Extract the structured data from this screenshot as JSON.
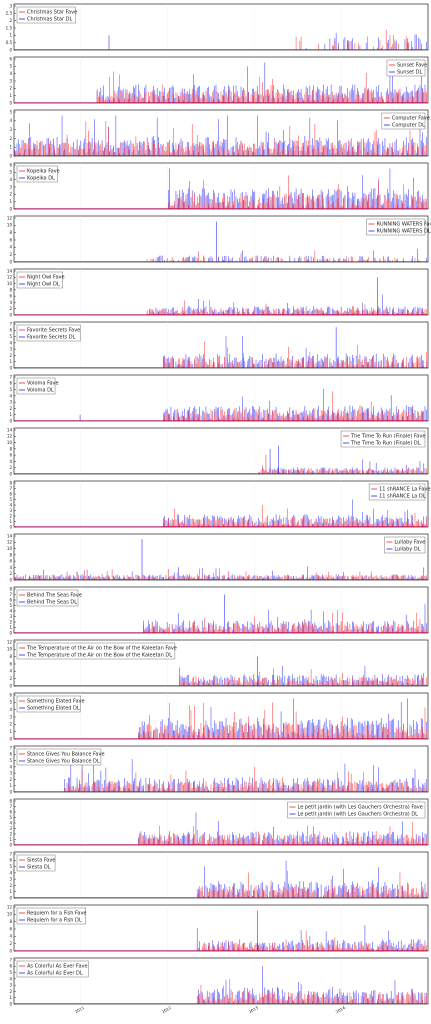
{
  "colors": {
    "fave": "#ff0000",
    "dl": "#0000ff",
    "grid": "#d8d8d8",
    "frame": "#000000"
  },
  "x_axis": {
    "ticks": [
      "2011",
      "2012",
      "2013",
      "2014"
    ]
  },
  "chart_data": [
    {
      "type": "line",
      "fave_label": "Christmas Star Fave",
      "dl_label": "Christmas Star DL",
      "yticks": [
        "0",
        "0.5",
        "1",
        "1.5",
        "2",
        "2.5",
        "3"
      ],
      "ymax": 3,
      "legend": "top-left",
      "dl_start": 0.68,
      "fave_start": 0.68,
      "density": 0.25,
      "dl_mean": 0.6,
      "fave_mean": 0.6,
      "extra_dl": [
        [
          0.23,
          1
        ]
      ],
      "extra_fave": []
    },
    {
      "type": "line",
      "fave_label": "Sunset Fave",
      "dl_label": "Sunset DL",
      "yticks": [
        "0",
        "1",
        "2",
        "3",
        "4",
        "5",
        "6"
      ],
      "ymax": 6,
      "legend": "top-right",
      "dl_start": 0.2,
      "fave_start": 0.2,
      "density": 0.9,
      "dl_mean": 1.4,
      "fave_mean": 1.1,
      "extra_dl": [],
      "extra_fave": []
    },
    {
      "type": "line",
      "fave_label": "Computer Fave",
      "dl_label": "Computer DL",
      "yticks": [
        "0",
        "1",
        "2",
        "3",
        "4",
        "5"
      ],
      "ymax": 5,
      "legend": "top-right",
      "dl_start": 0.0,
      "fave_start": 0.0,
      "density": 0.9,
      "dl_mean": 1.2,
      "fave_mean": 1.0,
      "extra_dl": [],
      "extra_fave": []
    },
    {
      "type": "line",
      "fave_label": "Kopeika Fave",
      "dl_label": "Kopeika DL",
      "yticks": [
        "0",
        "1",
        "2",
        "3",
        "4",
        "5",
        "6"
      ],
      "ymax": 6,
      "legend": "top-left",
      "dl_start": 0.37,
      "fave_start": 0.37,
      "density": 0.9,
      "dl_mean": 1.6,
      "fave_mean": 1.2,
      "extra_dl": [],
      "extra_fave": []
    },
    {
      "type": "line",
      "fave_label": "RUNNING WATERS Fave",
      "dl_label": "RUNNING WATERS DL",
      "yticks": [
        "0",
        "2",
        "4",
        "6",
        "8",
        "10",
        "12"
      ],
      "ymax": 12,
      "legend": "top-right",
      "dl_start": 0.32,
      "fave_start": 0.32,
      "density": 0.4,
      "dl_mean": 1.0,
      "fave_mean": 0.8,
      "extra_dl": [
        [
          0.49,
          11
        ]
      ],
      "extra_fave": []
    },
    {
      "type": "line",
      "fave_label": "Night Owl Fave",
      "dl_label": "Night Owl DL",
      "yticks": [
        "0",
        "2",
        "4",
        "6",
        "8",
        "10",
        "12",
        "14"
      ],
      "ymax": 14,
      "legend": "top-left",
      "dl_start": 0.32,
      "fave_start": 0.32,
      "density": 0.9,
      "dl_mean": 1.6,
      "fave_mean": 1.2,
      "extra_dl": [
        [
          0.88,
          12
        ]
      ],
      "extra_fave": []
    },
    {
      "type": "line",
      "fave_label": "Favorite Secrets Fave",
      "dl_label": "Favorite Secrets DL",
      "yticks": [
        "0",
        "1",
        "2",
        "3",
        "4",
        "5",
        "6",
        "7"
      ],
      "ymax": 7,
      "legend": "top-left",
      "dl_start": 0.36,
      "fave_start": 0.36,
      "density": 0.8,
      "dl_mean": 1.3,
      "fave_mean": 1.0,
      "extra_dl": [
        [
          0.78,
          6.5
        ]
      ],
      "extra_fave": []
    },
    {
      "type": "line",
      "fave_label": "Voloma Fave",
      "dl_label": "Voloma DL",
      "yticks": [
        "0",
        "1",
        "2",
        "3",
        "4",
        "5",
        "6",
        "7"
      ],
      "ymax": 7,
      "legend": "top-left",
      "dl_start": 0.36,
      "fave_start": 0.36,
      "density": 0.9,
      "dl_mean": 1.4,
      "fave_mean": 1.1,
      "extra_dl": [
        [
          0.16,
          1
        ]
      ],
      "extra_fave": []
    },
    {
      "type": "line",
      "fave_label": "The Time To Run (Finale) Fave",
      "dl_label": "The Time To Run (Finale) DL",
      "yticks": [
        "0",
        "2",
        "4",
        "6",
        "8",
        "10",
        "12",
        "14"
      ],
      "ymax": 14,
      "legend": "top-right",
      "dl_start": 0.59,
      "fave_start": 0.59,
      "density": 0.9,
      "dl_mean": 1.2,
      "fave_mean": 1.0,
      "extra_dl": [
        [
          0.62,
          8
        ],
        [
          0.64,
          9
        ]
      ],
      "extra_fave": [
        [
          0.61,
          6
        ]
      ]
    },
    {
      "type": "line",
      "fave_label": "11 shRANCE La Fave",
      "dl_label": "11 shRANCE La DL",
      "yticks": [
        "0",
        "1",
        "2",
        "3",
        "4",
        "5",
        "6",
        "7",
        "8"
      ],
      "ymax": 8,
      "legend": "top-right",
      "dl_start": 0.36,
      "fave_start": 0.36,
      "density": 0.9,
      "dl_mean": 1.3,
      "fave_mean": 1.0,
      "extra_dl": [],
      "extra_fave": []
    },
    {
      "type": "line",
      "fave_label": "Lullaby Fave",
      "dl_label": "Lullaby DL",
      "yticks": [
        "0",
        "2",
        "4",
        "6",
        "8",
        "10",
        "12",
        "14"
      ],
      "ymax": 14,
      "legend": "top-right",
      "dl_start": 0.0,
      "fave_start": 0.0,
      "density": 0.9,
      "dl_mean": 1.0,
      "fave_mean": 0.9,
      "extra_dl": [
        [
          0.31,
          13
        ]
      ],
      "extra_fave": []
    },
    {
      "type": "line",
      "fave_label": "Behind The Seas Fave",
      "dl_label": "Behind The Seas DL",
      "yticks": [
        "0",
        "1",
        "2",
        "3",
        "4",
        "5",
        "6",
        "7",
        "8"
      ],
      "ymax": 8,
      "legend": "top-left",
      "dl_start": 0.31,
      "fave_start": 0.31,
      "density": 0.85,
      "dl_mean": 1.3,
      "fave_mean": 1.0,
      "extra_dl": [
        [
          0.51,
          7
        ]
      ],
      "extra_fave": []
    },
    {
      "type": "line",
      "fave_label": "The Temperature of the Air on the Bow of the Kaleetan Fave",
      "dl_label": "The Temperature of the Air on the Bow of the Kaleetan DL",
      "yticks": [
        "0",
        "2",
        "4",
        "6",
        "8",
        "10",
        "12"
      ],
      "ymax": 12,
      "legend": "top-left",
      "dl_start": 0.4,
      "fave_start": 0.4,
      "density": 0.9,
      "dl_mean": 1.8,
      "fave_mean": 1.4,
      "extra_dl": [
        [
          0.59,
          8
        ]
      ],
      "extra_fave": []
    },
    {
      "type": "line",
      "fave_label": "Something Elated Fave",
      "dl_label": "Something Elated DL",
      "yticks": [
        "0",
        "1",
        "2",
        "3",
        "4",
        "5",
        "6"
      ],
      "ymax": 6,
      "legend": "top-left",
      "dl_start": 0.3,
      "fave_start": 0.3,
      "density": 0.95,
      "dl_mean": 1.6,
      "fave_mean": 1.2,
      "extra_dl": [],
      "extra_fave": []
    },
    {
      "type": "line",
      "fave_label": "Stance Gives You Balance Fave",
      "dl_label": "Stance Gives You Balance DL",
      "yticks": [
        "0",
        "1",
        "2",
        "3",
        "4",
        "5",
        "6",
        "7"
      ],
      "ymax": 7,
      "legend": "top-left",
      "dl_start": 0.12,
      "fave_start": 0.12,
      "density": 0.85,
      "dl_mean": 1.3,
      "fave_mean": 1.0,
      "extra_dl": [],
      "extra_fave": []
    },
    {
      "type": "line",
      "fave_label": "Le petit jardin (with Les Gauchers Orchestra) Fave",
      "dl_label": "Le petit jardin (with Les Gauchers Orchestra) DL",
      "yticks": [
        "0",
        "1",
        "2",
        "3",
        "4",
        "5",
        "6",
        "7",
        "8"
      ],
      "ymax": 8,
      "legend": "top-right",
      "dl_start": 0.3,
      "fave_start": 0.3,
      "density": 0.9,
      "dl_mean": 1.4,
      "fave_mean": 1.1,
      "extra_dl": [],
      "extra_fave": []
    },
    {
      "type": "line",
      "fave_label": "Siesta Fave",
      "dl_label": "Siesta DL",
      "yticks": [
        "0",
        "1",
        "2",
        "3",
        "4",
        "5",
        "6",
        "7"
      ],
      "ymax": 7,
      "legend": "top-left",
      "dl_start": 0.44,
      "fave_start": 0.44,
      "density": 0.9,
      "dl_mean": 1.5,
      "fave_mean": 1.1,
      "extra_dl": [],
      "extra_fave": []
    },
    {
      "type": "line",
      "fave_label": "Requiem for a Fish Fave",
      "dl_label": "Requiem for a Fish DL",
      "yticks": [
        "0",
        "2",
        "4",
        "6",
        "8",
        "10",
        "12"
      ],
      "ymax": 12,
      "legend": "top-left",
      "dl_start": 0.44,
      "fave_start": 0.44,
      "density": 0.85,
      "dl_mean": 1.8,
      "fave_mean": 1.3,
      "extra_dl": [
        [
          0.59,
          11
        ]
      ],
      "extra_fave": []
    },
    {
      "type": "line",
      "fave_label": "As Colorful As Ever Fave",
      "dl_label": "As Colorful As Ever DL",
      "yticks": [
        "0",
        "1",
        "2",
        "3",
        "4",
        "5",
        "6",
        "7"
      ],
      "ymax": 7,
      "legend": "top-left",
      "dl_start": 0.44,
      "fave_start": 0.44,
      "density": 0.9,
      "dl_mean": 1.5,
      "fave_mean": 1.1,
      "extra_dl": [],
      "extra_fave": []
    }
  ]
}
